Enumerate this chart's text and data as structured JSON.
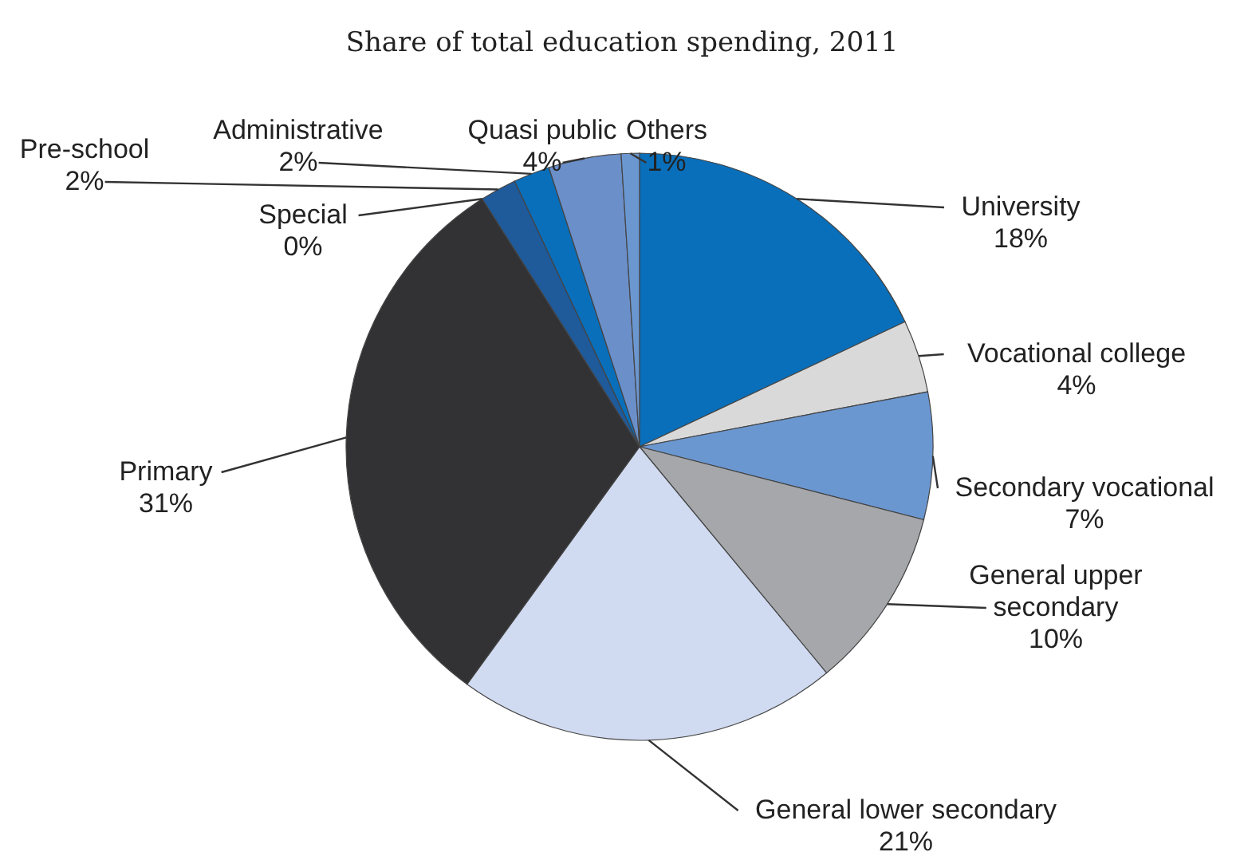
{
  "chart_data": {
    "type": "pie",
    "subtitle": "Share of total education spending, 2011",
    "categories": [
      "University",
      "Vocational college",
      "Secondary vocational",
      "General upper secondary",
      "General lower secondary",
      "Primary",
      "Special",
      "Pre-school",
      "Administrative",
      "Quasi public",
      "Others"
    ],
    "values": [
      18,
      4,
      7,
      10,
      21,
      31,
      0,
      2,
      2,
      4,
      1
    ],
    "value_labels": [
      "18%",
      "4%",
      "7%",
      "10%",
      "21%",
      "31%",
      "0%",
      "2%",
      "2%",
      "4%",
      "1%"
    ],
    "colors": [
      "#0a6fba",
      "#d9d9d9",
      "#6b97d1",
      "#a5a7aa",
      "#d0daf0",
      "#323234",
      "#ffffff",
      "#1f5a9a",
      "#0a6fba",
      "#6b8fc9",
      "#6b97d1"
    ]
  }
}
